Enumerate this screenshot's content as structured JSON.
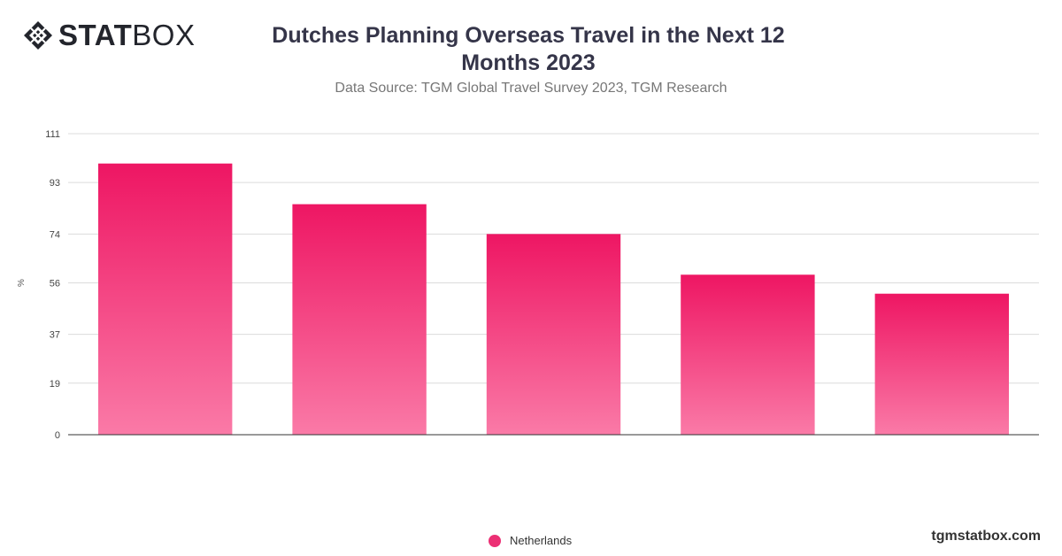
{
  "brand": {
    "logo_bold": "STAT",
    "logo_light": "BOX",
    "site": "tgmstatbox.com",
    "logo_icon": "diamond-lattice-icon"
  },
  "header": {
    "title_line1": "Dutches Planning Overseas Travel in the Next 12",
    "title_line2": "Months 2023",
    "subtitle": "Data Source: TGM Global Travel Survey 2023, TGM Research"
  },
  "legend": {
    "label": "Netherlands",
    "color": "#ec2f74"
  },
  "chart_data": {
    "type": "bar",
    "title": "Dutches Planning Overseas Travel in the Next 12 Months 2023",
    "subtitle": "Data Source: TGM Global Travel Survey 2023, TGM Research",
    "xlabel": "",
    "ylabel": "%",
    "categories": [
      "",
      "",
      "",
      "",
      ""
    ],
    "series": [
      {
        "name": "Netherlands",
        "values": [
          100,
          85,
          74,
          59,
          52
        ]
      }
    ],
    "ylim": [
      0,
      111
    ],
    "yticks": [
      "0",
      "19",
      "37",
      "56",
      "74",
      "93",
      "111"
    ],
    "grid": true,
    "legend_position": "bottom",
    "colors": {
      "bar_top": "#ee1663",
      "bar_bottom": "#fa7aa7",
      "grid": "#dcdcdc",
      "axis": "#333333"
    }
  }
}
